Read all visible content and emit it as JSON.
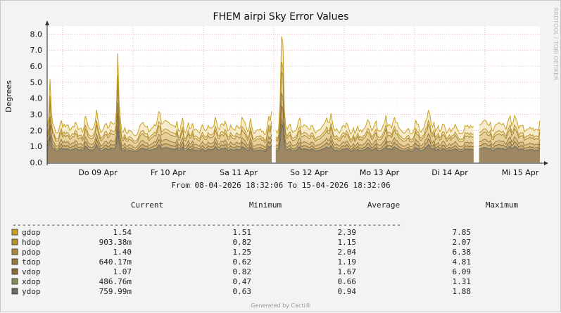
{
  "chart_data": {
    "type": "area",
    "title": "FHEM airpi Sky Error Values",
    "ylabel": "Degrees",
    "watermark": "RRDTOOL / TOBI OETIKER",
    "ylim": [
      0,
      8.5
    ],
    "yticks": [
      "0.0",
      "1.0",
      "2.0",
      "3.0",
      "4.0",
      "5.0",
      "6.0",
      "7.0",
      "8.0"
    ],
    "xticks": [
      "Do 09 Apr",
      "Fr 10 Apr",
      "Sa 11 Apr",
      "So 12 Apr",
      "Mo 13 Apr",
      "Di 14 Apr",
      "Mi 15 Apr"
    ],
    "date_range": "From 08-04-2026 18:32:06 To 15-04-2026 18:32:06",
    "legend_headers": {
      "current": "Current",
      "minimum": "Minimum",
      "average": "Average",
      "maximum": "Maximum"
    },
    "separator": "--------------------------------------------------------------------------------",
    "series": [
      {
        "name": "gdop",
        "color": "#c8a21e",
        "current": "1.54",
        "minimum": "1.51",
        "average": "2.39",
        "maximum": "7.85"
      },
      {
        "name": "hdop",
        "color": "#b8942a",
        "current": "903.38m",
        "minimum": "0.82",
        "average": "1.15",
        "maximum": "2.07"
      },
      {
        "name": "pdop",
        "color": "#a88a36",
        "current": "1.40",
        "minimum": "1.25",
        "average": "2.04",
        "maximum": "6.38"
      },
      {
        "name": "tdop",
        "color": "#987a3c",
        "current": "640.17m",
        "minimum": "0.62",
        "average": "1.19",
        "maximum": "4.81"
      },
      {
        "name": "vdop",
        "color": "#8a6a36",
        "current": "1.07",
        "minimum": "0.82",
        "average": "1.67",
        "maximum": "6.09"
      },
      {
        "name": "xdop",
        "color": "#8a8660",
        "current": "486.76m",
        "minimum": "0.47",
        "average": "0.66",
        "maximum": "1.31"
      },
      {
        "name": "ydop",
        "color": "#6a6a60",
        "current": "759.99m",
        "minimum": "0.63",
        "average": "0.94",
        "maximum": "1.88"
      }
    ],
    "footer": "Generated by Cacti®"
  }
}
